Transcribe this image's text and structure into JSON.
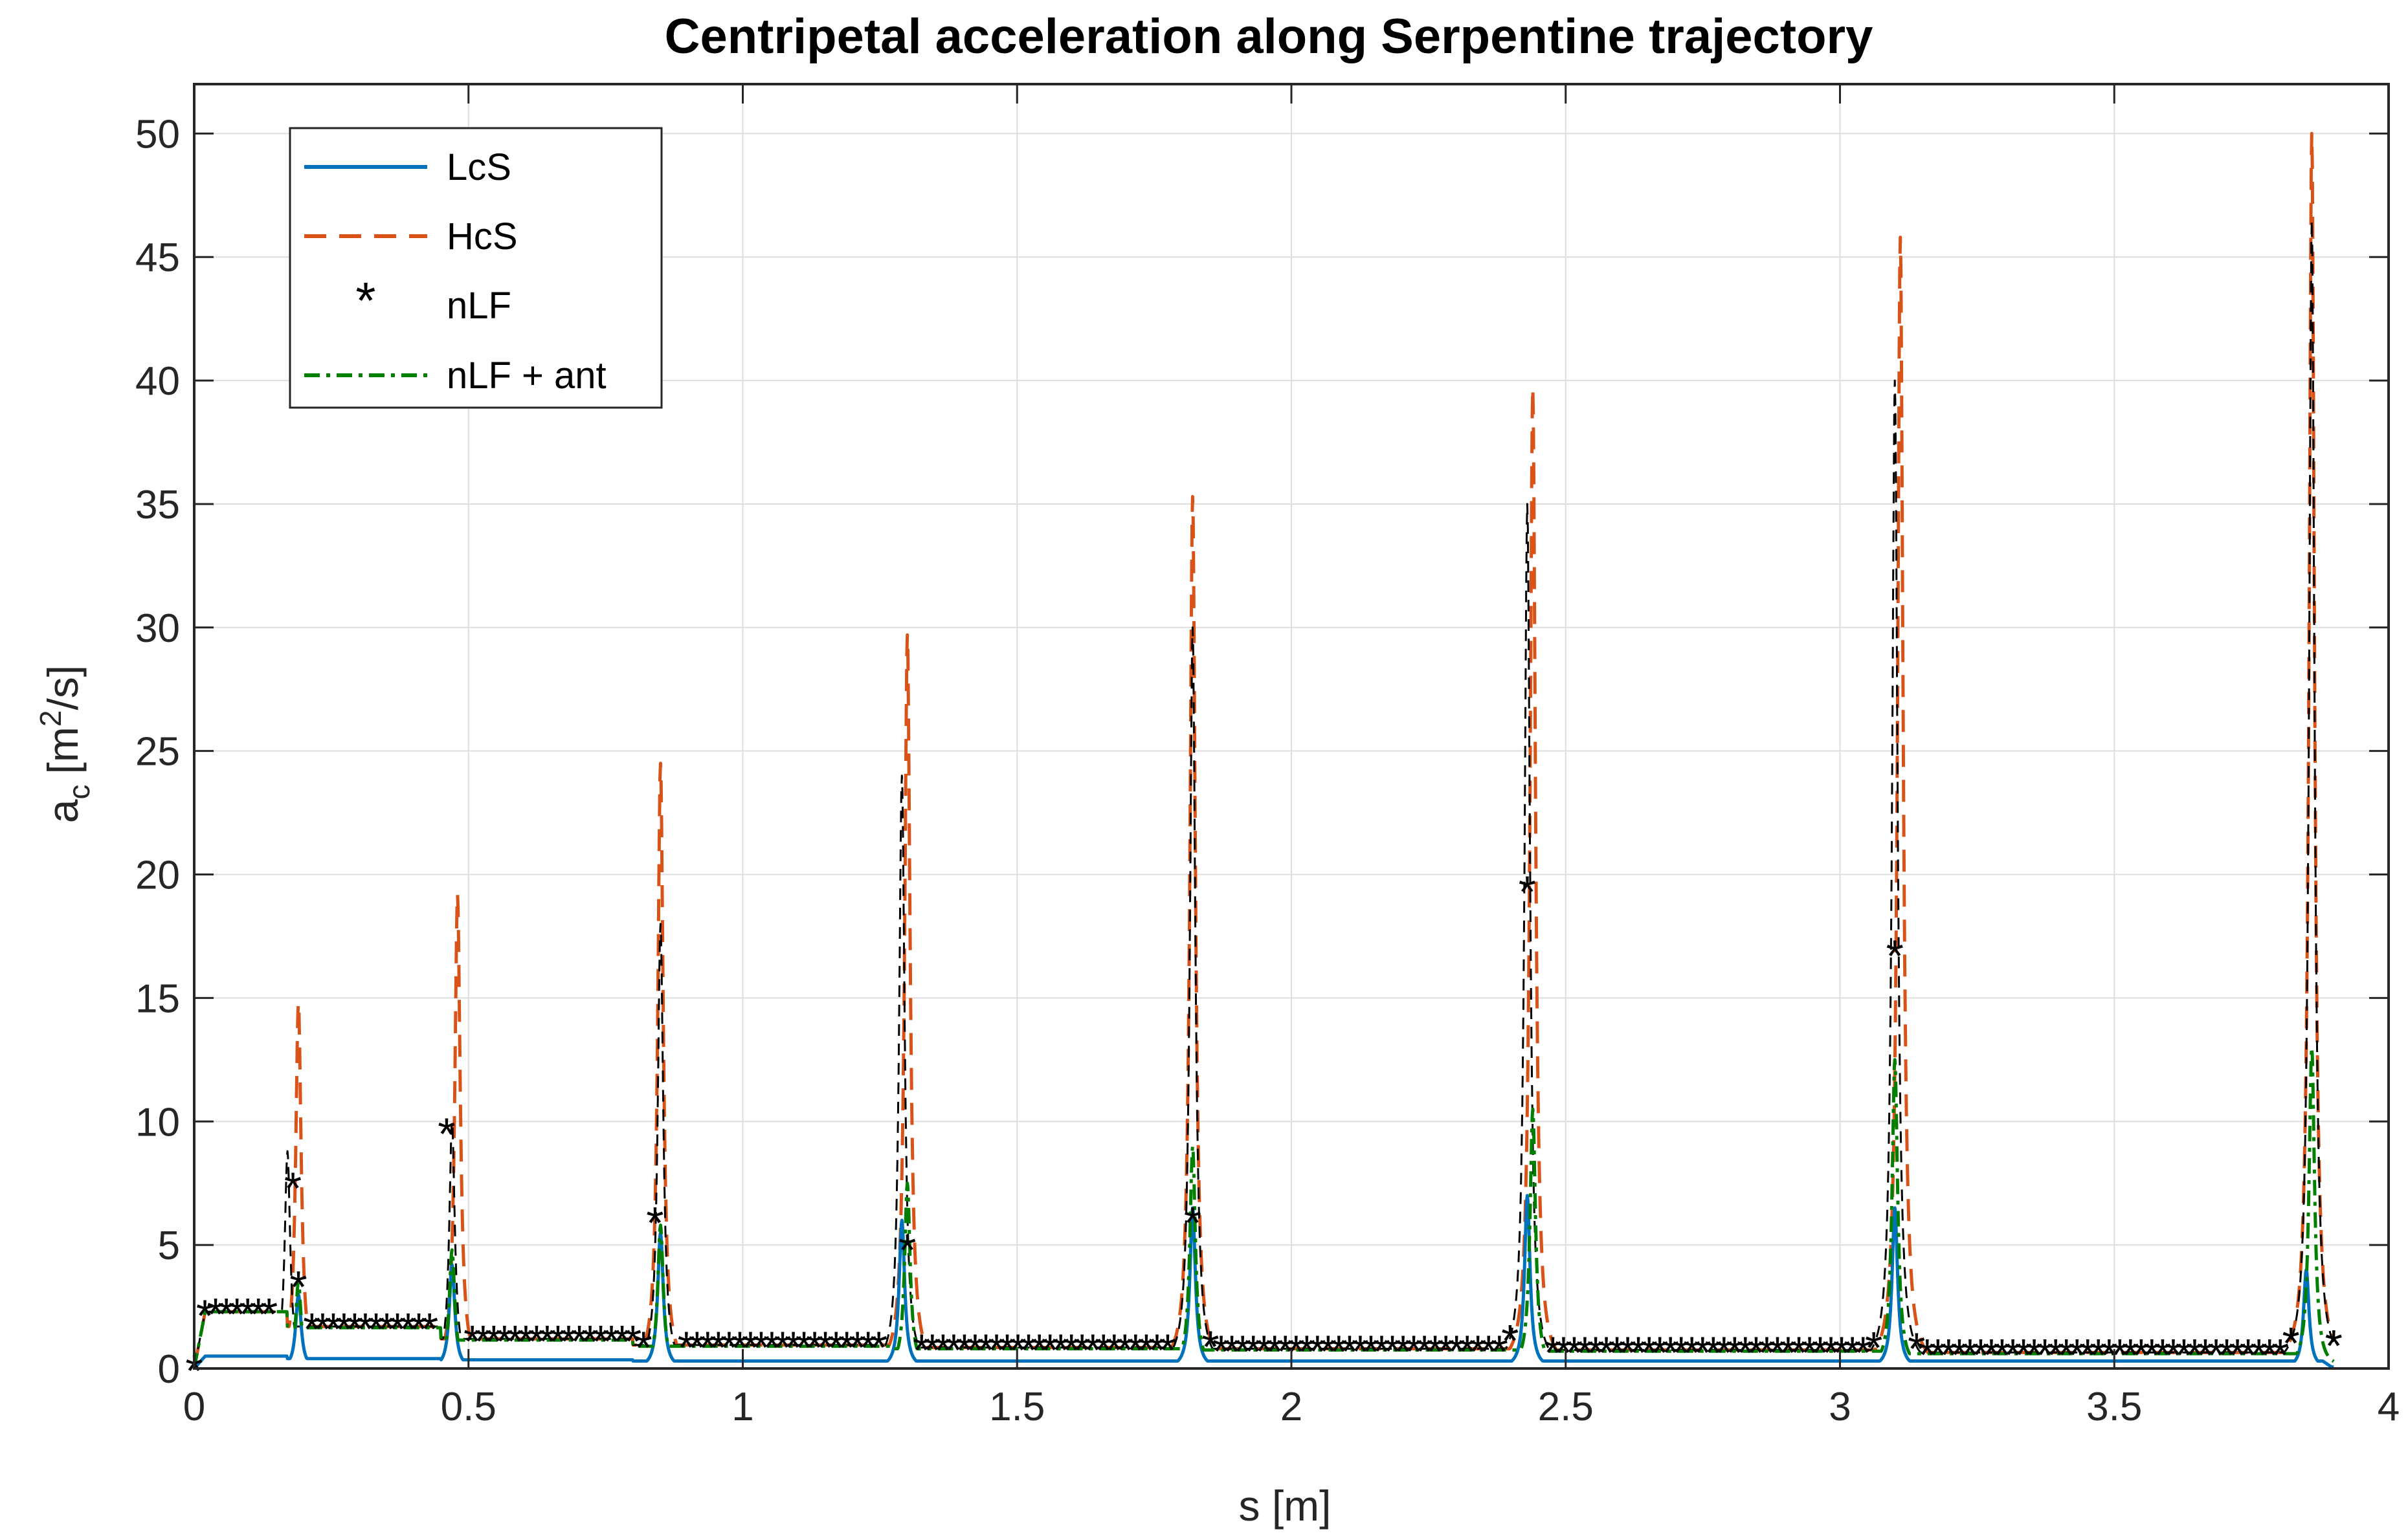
{
  "chart_data": {
    "type": "line",
    "title": "Centripetal acceleration along Serpentine trajectory",
    "xlabel": "s [m]",
    "ylabel": {
      "base": "a",
      "sub": "c",
      "unit_pre": "[m",
      "unit_sup": "2",
      "unit_post": "/s]"
    },
    "xlim": [
      0,
      4
    ],
    "ylim": [
      0,
      52
    ],
    "xticks": [
      0,
      0.5,
      1,
      1.5,
      2,
      2.5,
      3,
      3.5,
      4
    ],
    "xtick_labels": [
      "0",
      "0.5",
      "1",
      "1.5",
      "2",
      "2.5",
      "3",
      "3.5",
      "4"
    ],
    "yticks": [
      0,
      5,
      10,
      15,
      20,
      25,
      30,
      35,
      40,
      45,
      50
    ],
    "ytick_labels": [
      "0",
      "5",
      "10",
      "15",
      "20",
      "25",
      "30",
      "35",
      "40",
      "45",
      "50"
    ],
    "grid": true,
    "legend_position": "top-left",
    "series": [
      {
        "name": "LcS",
        "style": "solid",
        "color": "#0072BD",
        "segment_ends": [
          0.17,
          0.45,
          0.8,
          1.27,
          1.8,
          2.42,
          3.09,
          3.84,
          3.9
        ],
        "baselines": [
          0.5,
          0.4,
          0.35,
          0.3,
          0.3,
          0.3,
          0.3,
          0.3
        ],
        "peaks": [
          {
            "s": 0.19,
            "value": 3.0
          },
          {
            "s": 0.47,
            "value": 4.2
          },
          {
            "s": 0.85,
            "value": 5.5
          },
          {
            "s": 1.29,
            "value": 6.0
          },
          {
            "s": 1.82,
            "value": 6.5
          },
          {
            "s": 2.43,
            "value": 7.0
          },
          {
            "s": 3.1,
            "value": 6.5
          },
          {
            "s": 3.85,
            "value": 4.0
          }
        ]
      },
      {
        "name": "HcS",
        "style": "dashed",
        "color": "#D95319",
        "segment_ends": [
          0.17,
          0.45,
          0.8,
          1.27,
          1.8,
          2.42,
          3.09,
          3.84,
          3.9
        ],
        "baselines": [
          2.3,
          1.7,
          1.2,
          0.95,
          0.85,
          0.8,
          0.75,
          0.65
        ],
        "peaks": [
          {
            "s": 0.19,
            "value": 14.8
          },
          {
            "s": 0.48,
            "value": 19.2
          },
          {
            "s": 0.85,
            "value": 24.5
          },
          {
            "s": 1.3,
            "value": 29.7
          },
          {
            "s": 1.82,
            "value": 35.3
          },
          {
            "s": 2.44,
            "value": 39.7
          },
          {
            "s": 3.11,
            "value": 45.8
          },
          {
            "s": 3.86,
            "value": 50.0
          }
        ]
      },
      {
        "name": "nLF",
        "style": "markers",
        "color": "#000000",
        "segment_ends": [
          0.17,
          0.45,
          0.8,
          1.27,
          1.8,
          2.42,
          3.09,
          3.84,
          3.9
        ],
        "baselines": [
          2.3,
          1.7,
          1.2,
          0.95,
          0.85,
          0.8,
          0.75,
          0.65
        ],
        "peaks": [
          {
            "s": 0.17,
            "value": 8.8
          },
          {
            "s": 0.47,
            "value": 10.0
          },
          {
            "s": 0.85,
            "value": 18.0
          },
          {
            "s": 1.29,
            "value": 24.0
          },
          {
            "s": 1.82,
            "value": 30.0
          },
          {
            "s": 2.43,
            "value": 35.0
          },
          {
            "s": 3.1,
            "value": 40.0
          },
          {
            "s": 3.86,
            "value": 46.5
          }
        ],
        "highlight_points": [
          {
            "s": 0.18,
            "value": 7.4
          },
          {
            "s": 0.46,
            "value": 9.6
          },
          {
            "s": 2.43,
            "value": 19.4
          },
          {
            "s": 3.1,
            "value": 16.8
          },
          {
            "s": 0.84,
            "value": 6.0
          },
          {
            "s": 1.82,
            "value": 6.0
          },
          {
            "s": 1.3,
            "value": 4.9
          },
          {
            "s": 0.19,
            "value": 3.4
          }
        ]
      },
      {
        "name": "nLF + ant",
        "style": "dashdot",
        "color": "#007F00",
        "segment_ends": [
          0.17,
          0.45,
          0.8,
          1.27,
          1.8,
          2.42,
          3.09,
          3.84,
          3.9
        ],
        "baselines": [
          2.3,
          1.65,
          1.15,
          0.9,
          0.8,
          0.75,
          0.7,
          0.6
        ],
        "peaks": [
          {
            "s": 0.19,
            "value": 3.5
          },
          {
            "s": 0.47,
            "value": 4.8
          },
          {
            "s": 0.85,
            "value": 5.8
          },
          {
            "s": 1.3,
            "value": 7.5
          },
          {
            "s": 1.82,
            "value": 9.0
          },
          {
            "s": 2.44,
            "value": 10.5
          },
          {
            "s": 3.1,
            "value": 12.5
          },
          {
            "s": 3.86,
            "value": 13.0
          }
        ]
      }
    ]
  }
}
